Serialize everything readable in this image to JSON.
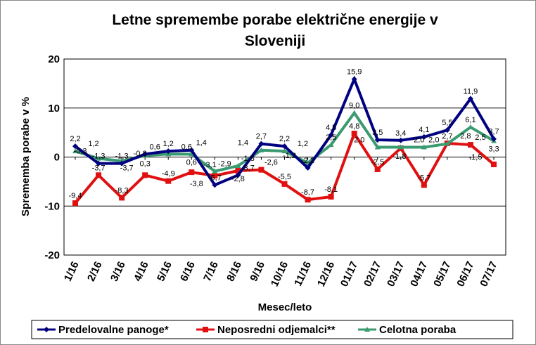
{
  "chart_data": {
    "type": "line",
    "title": "Letne spremembe porabe električne energije v Slovenij",
    "title_lines": [
      "Letne spremembe porabe električne energije v",
      "Sloveniji"
    ],
    "xlabel": "Mesec/leto",
    "ylabel": "Sprememba porabe v %",
    "ylim": [
      -20,
      20
    ],
    "yticks": [
      "20",
      "10",
      "0",
      "-10",
      "-20"
    ],
    "grid": true,
    "legend": "bottom",
    "categories": [
      "1/16",
      "2/16",
      "3/16",
      "4/16",
      "5/16",
      "6/16",
      "7/16",
      "8/16",
      "9/16",
      "10/16",
      "11/16",
      "12/16",
      "01/17",
      "02/17",
      "03/17",
      "04/17",
      "05/17",
      "06/17",
      "07/17"
    ],
    "series": [
      {
        "name": "Predelovalne panoge*",
        "color": "#000080",
        "marker": "diamond",
        "values": [
          2.2,
          -1.3,
          -1.3,
          0.6,
          1.2,
          1.4,
          -5.7,
          -3.7,
          2.7,
          2.2,
          -2.2,
          4.5,
          15.9,
          3.5,
          3.4,
          4.1,
          5.5,
          11.9,
          3.7
        ]
      },
      {
        "name": "Neposredni odjemalci**",
        "color": "#e01010",
        "marker": "square",
        "values": [
          -9.4,
          -3.7,
          -8.3,
          -3.7,
          -4.9,
          -3.1,
          -3.8,
          -2.8,
          -2.6,
          -5.5,
          -8.7,
          -8.1,
          4.8,
          -2.5,
          1.8,
          -5.7,
          2.8,
          2.5,
          -1.5
        ]
      },
      {
        "name": "Celotna poraba",
        "color": "#3a9a70",
        "marker": "triangle",
        "values": [
          1.2,
          -0.3,
          -0.8,
          0.3,
          0.6,
          0.6,
          -2.9,
          -1.8,
          1.4,
          1.2,
          -1.2,
          2.5,
          9.0,
          2.0,
          2.0,
          2.0,
          2.7,
          6.1,
          3.3
        ]
      }
    ]
  }
}
